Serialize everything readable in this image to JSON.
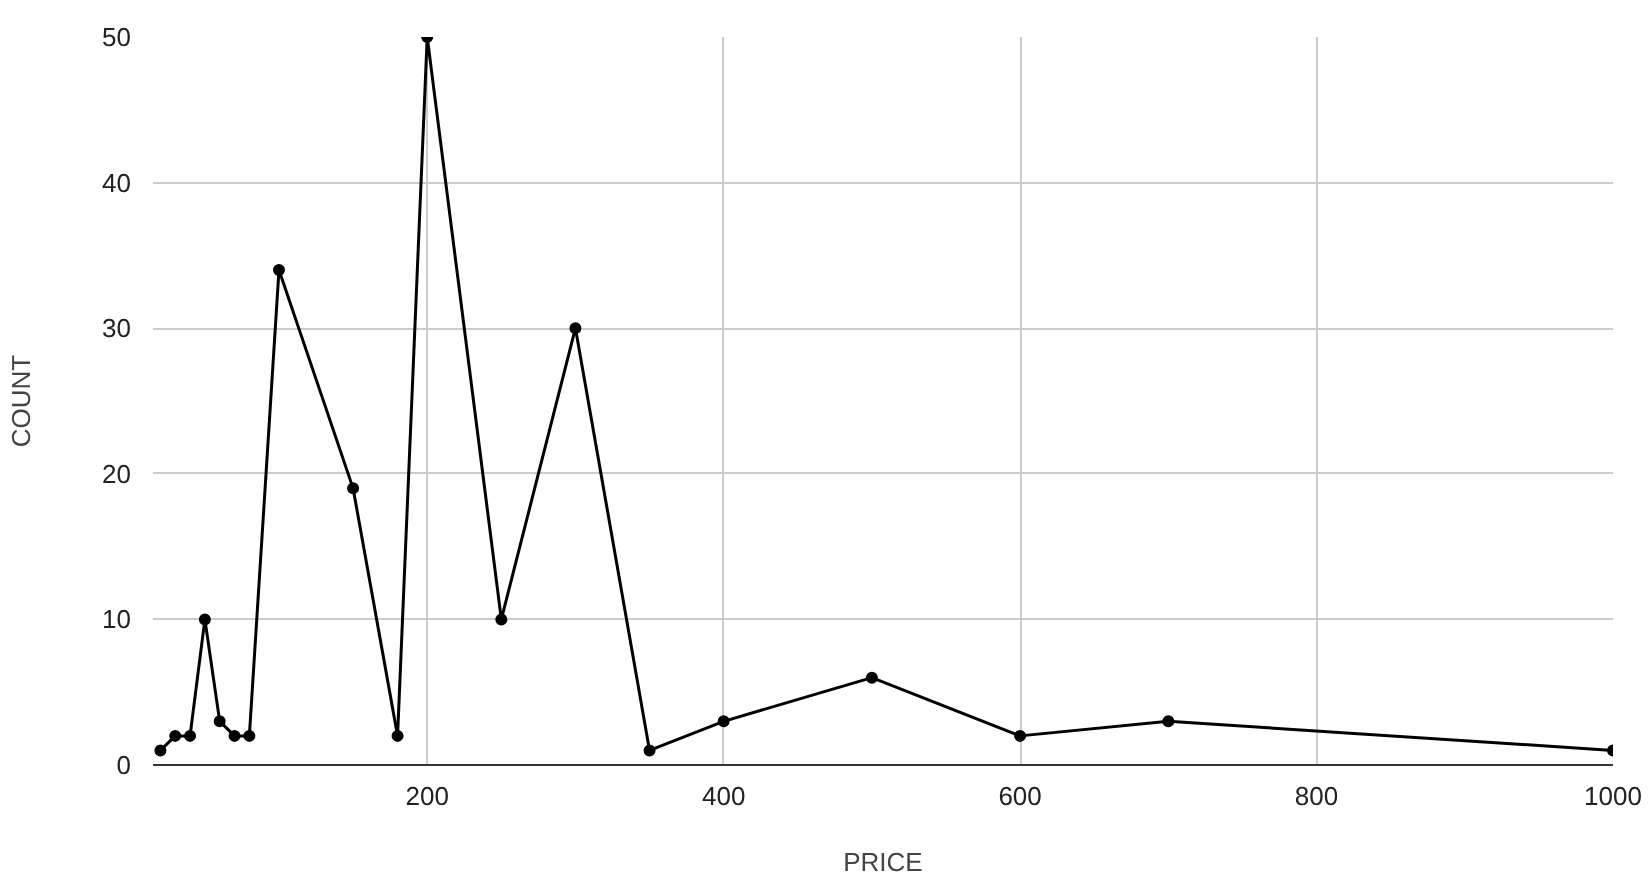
{
  "chart_data": {
    "type": "line",
    "xlabel": "PRICE",
    "ylabel": "COUNT",
    "x": [
      20,
      30,
      40,
      50,
      60,
      70,
      80,
      100,
      150,
      180,
      200,
      250,
      300,
      350,
      400,
      500,
      600,
      700,
      1000
    ],
    "series": [
      {
        "color": "#000000",
        "values": [
          1,
          2,
          2,
          10,
          3,
          2,
          2,
          34,
          19,
          2,
          50,
          10,
          30,
          1,
          3,
          6,
          2,
          3,
          1
        ]
      }
    ],
    "xlim": [
      15,
      1000
    ],
    "xticks": [
      200,
      400,
      600,
      800,
      1000
    ],
    "ylim": [
      0,
      50
    ],
    "yticks": [
      0,
      10,
      20,
      30,
      40,
      50
    ],
    "grid": true,
    "marker": "circle",
    "line_style": "solid"
  }
}
